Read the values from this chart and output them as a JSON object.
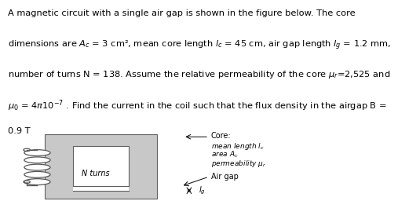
{
  "bg_color": "#ffffff",
  "core_color": "#c8c8c8",
  "core_edge_color": "#606060",
  "text_fontsize": 8.2,
  "label_fontsize": 7.0,
  "lines": [
    "A magnetic circuit with a single air gap is shown in the figure below. The core",
    "dimensions are $A_c$ = 3 cm², mean core length $l_c$ = 45 cm, air gap length $l_g$ = 1.2 mm,",
    "number of turns N = 138. Assume the relative permeability of the core $\\mu_r$=2,525 and",
    "$\\mu_0$ = $4\\pi10^{-7}$ . Find the current in the coil such that the flux density in the airgap B =",
    "0.9 T"
  ]
}
